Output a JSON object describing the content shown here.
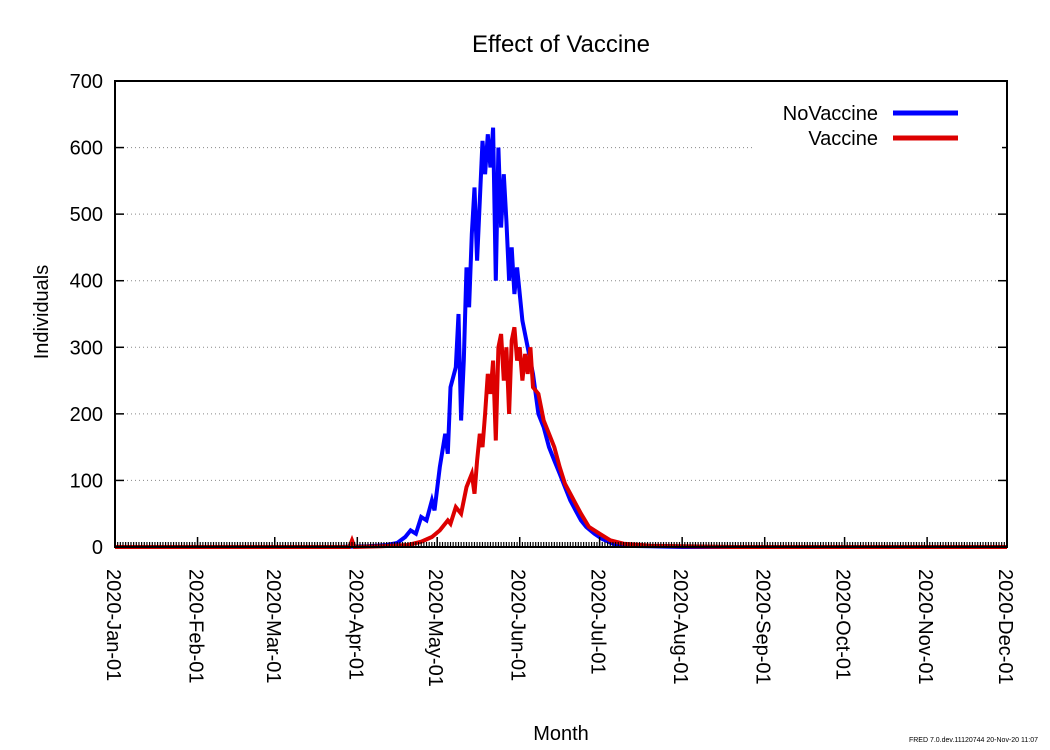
{
  "chart_data": {
    "type": "line",
    "title": "Effect of Vaccine",
    "xlabel": "Month",
    "ylabel": "Individuals",
    "ylim": [
      0,
      700
    ],
    "yticks": [
      0,
      100,
      200,
      300,
      400,
      500,
      600,
      700
    ],
    "xlim": [
      "2020-01-01",
      "2020-12-01"
    ],
    "xticks": [
      "2020-Jan-01",
      "2020-Feb-01",
      "2020-Mar-01",
      "2020-Apr-01",
      "2020-May-01",
      "2020-Jun-01",
      "2020-Jul-01",
      "2020-Aug-01",
      "2020-Sep-01",
      "2020-Oct-01",
      "2020-Nov-01",
      "2020-Dec-01"
    ],
    "grid": "dotted horizontal",
    "legend": "top-right",
    "series": [
      {
        "name": "NoVaccine",
        "color": "#0000ff",
        "points": [
          [
            "2020-01-01",
            0
          ],
          [
            "2020-03-25",
            0
          ],
          [
            "2020-04-05",
            1
          ],
          [
            "2020-04-12",
            3
          ],
          [
            "2020-04-16",
            6
          ],
          [
            "2020-04-19",
            15
          ],
          [
            "2020-04-21",
            25
          ],
          [
            "2020-04-23",
            20
          ],
          [
            "2020-04-25",
            45
          ],
          [
            "2020-04-27",
            40
          ],
          [
            "2020-04-29",
            70
          ],
          [
            "2020-04-30",
            55
          ],
          [
            "2020-05-02",
            120
          ],
          [
            "2020-05-04",
            170
          ],
          [
            "2020-05-05",
            140
          ],
          [
            "2020-05-06",
            240
          ],
          [
            "2020-05-08",
            270
          ],
          [
            "2020-05-09",
            350
          ],
          [
            "2020-05-10",
            190
          ],
          [
            "2020-05-11",
            280
          ],
          [
            "2020-05-12",
            420
          ],
          [
            "2020-05-13",
            360
          ],
          [
            "2020-05-14",
            470
          ],
          [
            "2020-05-15",
            540
          ],
          [
            "2020-05-16",
            430
          ],
          [
            "2020-05-17",
            520
          ],
          [
            "2020-05-18",
            610
          ],
          [
            "2020-05-19",
            560
          ],
          [
            "2020-05-20",
            620
          ],
          [
            "2020-05-21",
            570
          ],
          [
            "2020-05-22",
            630
          ],
          [
            "2020-05-23",
            400
          ],
          [
            "2020-05-24",
            600
          ],
          [
            "2020-05-25",
            480
          ],
          [
            "2020-05-26",
            560
          ],
          [
            "2020-05-27",
            490
          ],
          [
            "2020-05-28",
            400
          ],
          [
            "2020-05-29",
            450
          ],
          [
            "2020-05-30",
            380
          ],
          [
            "2020-05-31",
            420
          ],
          [
            "2020-06-02",
            340
          ],
          [
            "2020-06-04",
            300
          ],
          [
            "2020-06-06",
            260
          ],
          [
            "2020-06-08",
            200
          ],
          [
            "2020-06-10",
            180
          ],
          [
            "2020-06-12",
            150
          ],
          [
            "2020-06-14",
            130
          ],
          [
            "2020-06-16",
            110
          ],
          [
            "2020-06-18",
            90
          ],
          [
            "2020-06-20",
            70
          ],
          [
            "2020-06-22",
            55
          ],
          [
            "2020-06-24",
            40
          ],
          [
            "2020-06-26",
            30
          ],
          [
            "2020-06-29",
            20
          ],
          [
            "2020-07-02",
            12
          ],
          [
            "2020-07-06",
            5
          ],
          [
            "2020-07-10",
            2
          ],
          [
            "2020-07-20",
            1
          ],
          [
            "2020-08-01",
            0
          ],
          [
            "2020-12-01",
            0
          ]
        ]
      },
      {
        "name": "Vaccine",
        "color": "#dd0000",
        "points": [
          [
            "2020-01-01",
            0
          ],
          [
            "2020-03-29",
            0
          ],
          [
            "2020-03-30",
            10
          ],
          [
            "2020-03-31",
            0
          ],
          [
            "2020-04-10",
            1
          ],
          [
            "2020-04-20",
            3
          ],
          [
            "2020-04-25",
            8
          ],
          [
            "2020-04-29",
            15
          ],
          [
            "2020-05-02",
            25
          ],
          [
            "2020-05-05",
            40
          ],
          [
            "2020-05-06",
            35
          ],
          [
            "2020-05-08",
            60
          ],
          [
            "2020-05-10",
            50
          ],
          [
            "2020-05-12",
            90
          ],
          [
            "2020-05-14",
            110
          ],
          [
            "2020-05-15",
            80
          ],
          [
            "2020-05-16",
            130
          ],
          [
            "2020-05-17",
            170
          ],
          [
            "2020-05-18",
            150
          ],
          [
            "2020-05-19",
            200
          ],
          [
            "2020-05-20",
            260
          ],
          [
            "2020-05-21",
            230
          ],
          [
            "2020-05-22",
            280
          ],
          [
            "2020-05-23",
            160
          ],
          [
            "2020-05-24",
            300
          ],
          [
            "2020-05-25",
            320
          ],
          [
            "2020-05-26",
            250
          ],
          [
            "2020-05-27",
            300
          ],
          [
            "2020-05-28",
            200
          ],
          [
            "2020-05-29",
            310
          ],
          [
            "2020-05-30",
            330
          ],
          [
            "2020-05-31",
            280
          ],
          [
            "2020-06-01",
            300
          ],
          [
            "2020-06-02",
            250
          ],
          [
            "2020-06-03",
            290
          ],
          [
            "2020-06-04",
            260
          ],
          [
            "2020-06-05",
            300
          ],
          [
            "2020-06-06",
            240
          ],
          [
            "2020-06-08",
            230
          ],
          [
            "2020-06-10",
            190
          ],
          [
            "2020-06-12",
            170
          ],
          [
            "2020-06-14",
            150
          ],
          [
            "2020-06-16",
            120
          ],
          [
            "2020-06-18",
            95
          ],
          [
            "2020-06-20",
            80
          ],
          [
            "2020-06-22",
            65
          ],
          [
            "2020-06-24",
            50
          ],
          [
            "2020-06-27",
            30
          ],
          [
            "2020-07-01",
            20
          ],
          [
            "2020-07-05",
            10
          ],
          [
            "2020-07-10",
            5
          ],
          [
            "2020-07-20",
            2
          ],
          [
            "2020-08-01",
            1
          ],
          [
            "2020-08-20",
            0
          ],
          [
            "2020-12-01",
            0
          ]
        ]
      }
    ]
  },
  "footer": "FRED 7.0.dev.11120744 20-Nov-20 11:07"
}
